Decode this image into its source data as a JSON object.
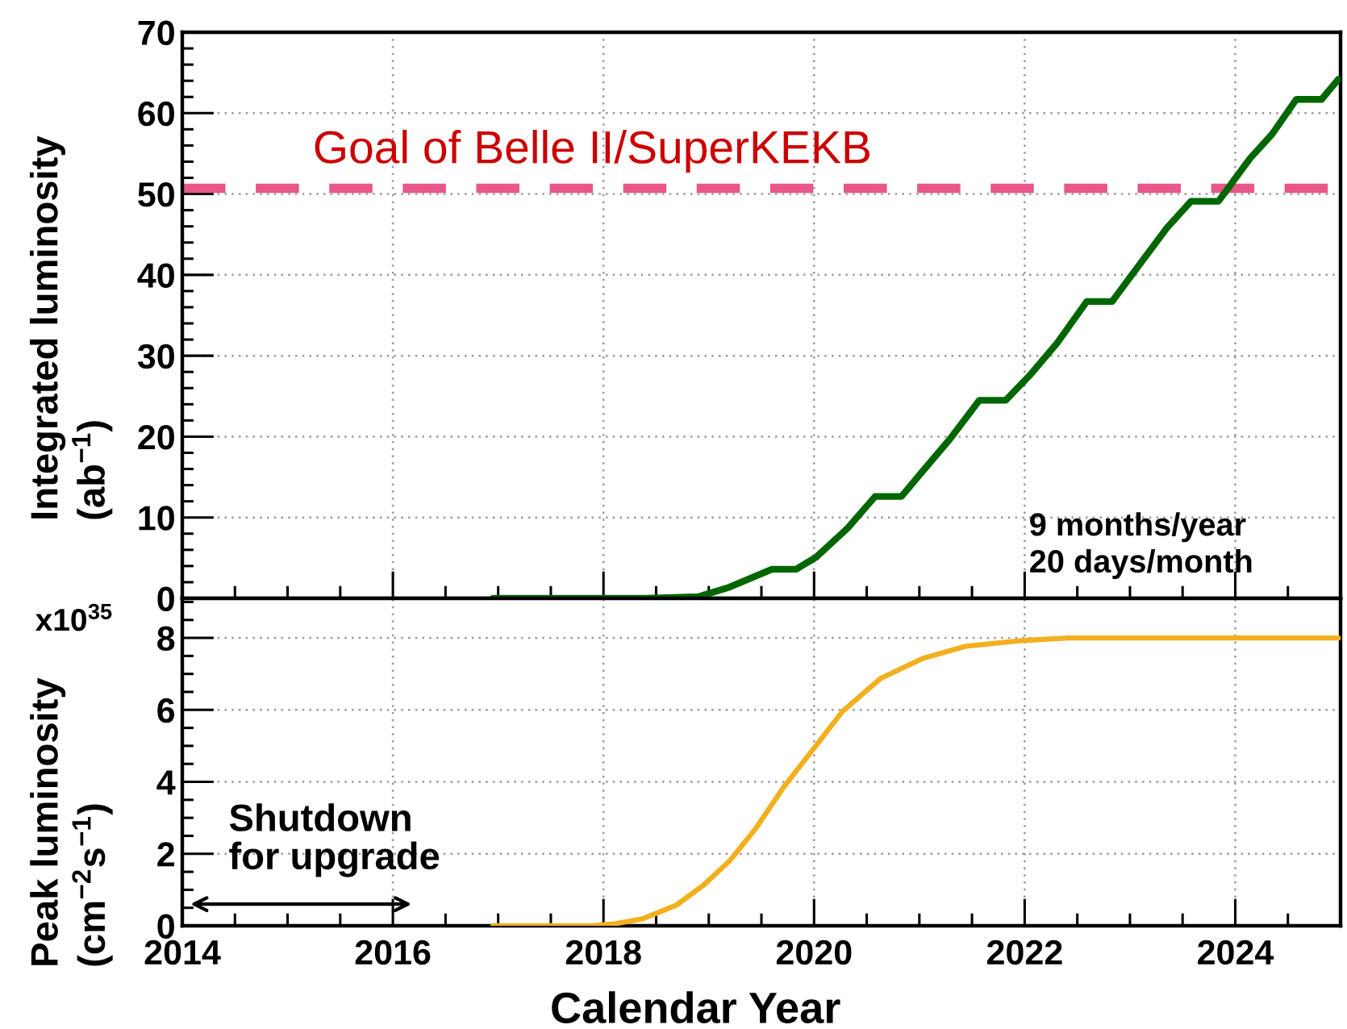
{
  "chart_data": [
    {
      "type": "line",
      "ylabel": "Integrated luminosity\n(ab$^{−1}$)",
      "x": [
        2016.95,
        2018.4,
        2018.9,
        2019.05,
        2019.2,
        2019.6,
        2019.83,
        2020.02,
        2020.32,
        2020.58,
        2020.83,
        2021.03,
        2021.29,
        2021.57,
        2021.82,
        2022.05,
        2022.31,
        2022.59,
        2022.83,
        2023.07,
        2023.35,
        2023.58,
        2023.84,
        2024.14,
        2024.35,
        2024.58,
        2024.82,
        2024.98
      ],
      "values": [
        0,
        0,
        0.2,
        0.8,
        1.4,
        3.6,
        3.6,
        5.1,
        8.7,
        12.6,
        12.6,
        15.7,
        19.7,
        24.5,
        24.5,
        27.6,
        31.6,
        36.7,
        36.7,
        40.9,
        45.8,
        49.1,
        49.1,
        54.4,
        57.4,
        61.7,
        61.7,
        64.2
      ],
      "color": "#006600",
      "xlim": [
        2014,
        2025
      ],
      "ylim": [
        0,
        70
      ],
      "xticks": [
        2014,
        {
          "value": 2014.5,
          "label": null
        },
        {
          "value": 2015,
          "label": null
        },
        {
          "value": 2015.5,
          "label": null
        },
        2016,
        {
          "value": 2016.5,
          "label": null
        },
        {
          "value": 2017,
          "label": null
        },
        {
          "value": 2017.5,
          "label": null
        },
        2018,
        {
          "value": 2018.5,
          "label": null
        },
        {
          "value": 2019,
          "label": null
        },
        {
          "value": 2019.5,
          "label": null
        },
        2020,
        {
          "value": 2020.5,
          "label": null
        },
        {
          "value": 2021,
          "label": null
        },
        {
          "value": 2021.5,
          "label": null
        },
        2022,
        {
          "value": 2022.5,
          "label": null
        },
        {
          "value": 2023,
          "label": null
        },
        {
          "value": 2023.5,
          "label": null
        },
        2024,
        {
          "value": 2024.5,
          "label": null
        }
      ],
      "yticks": [
        0,
        {
          "value": 2,
          "label": null
        },
        {
          "value": 4,
          "label": null
        },
        {
          "value": 6,
          "label": null
        },
        {
          "value": 8,
          "label": null
        },
        10,
        {
          "value": 12,
          "label": null
        },
        {
          "value": 14,
          "label": null
        },
        {
          "value": 16,
          "label": null
        },
        {
          "value": 18,
          "label": null
        },
        20,
        {
          "value": 22,
          "label": null
        },
        {
          "value": 24,
          "label": null
        },
        {
          "value": 26,
          "label": null
        },
        {
          "value": 28,
          "label": null
        },
        30,
        {
          "value": 32,
          "label": null
        },
        {
          "value": 34,
          "label": null
        },
        {
          "value": 36,
          "label": null
        },
        {
          "value": 38,
          "label": null
        },
        40,
        {
          "value": 42,
          "label": null
        },
        {
          "value": 44,
          "label": null
        },
        {
          "value": 46,
          "label": null
        },
        {
          "value": 48,
          "label": null
        },
        50,
        {
          "value": 52,
          "label": null
        },
        {
          "value": 54,
          "label": null
        },
        {
          "value": 56,
          "label": null
        },
        {
          "value": 58,
          "label": null
        },
        60,
        {
          "value": 62,
          "label": null
        },
        {
          "value": 64,
          "label": null
        },
        {
          "value": 66,
          "label": null
        },
        {
          "value": 68,
          "label": null
        },
        70
      ],
      "tick_labels": "y",
      "grid": true,
      "ref_lines": [
        {
          "axis": "y",
          "value": 50.7,
          "label": "Goal of Belle II/SuperKEKB",
          "color": "#e8578a",
          "line_style": "dashed"
        }
      ],
      "annotations": [
        "9 months/year\n20 days/month"
      ]
    },
    {
      "type": "line",
      "xlabel": "Calendar Year",
      "ylabel": "Peak luminosity\n(cm$^{−2}$s$^{−1}$)",
      "x": [
        2016.95,
        2017.9,
        2018.1,
        2018.38,
        2018.69,
        2018.95,
        2019.2,
        2019.45,
        2019.71,
        2019.99,
        2020.27,
        2020.63,
        2021.03,
        2021.44,
        2021.95,
        2022.41,
        2024.98
      ],
      "values": [
        0,
        0,
        0.05,
        0.2,
        0.57,
        1.13,
        1.81,
        2.72,
        3.85,
        4.9,
        5.96,
        6.87,
        7.43,
        7.77,
        7.92,
        8.0,
        8.0
      ],
      "color": "#f2b01e",
      "xlim": [
        2014,
        2025
      ],
      "ylim": [
        0,
        9.1
      ],
      "xticks": [
        2014,
        {
          "value": 2014.5,
          "label": null
        },
        {
          "value": 2015,
          "label": null
        },
        {
          "value": 2015.5,
          "label": null
        },
        2016,
        {
          "value": 2016.5,
          "label": null
        },
        {
          "value": 2017,
          "label": null
        },
        {
          "value": 2017.5,
          "label": null
        },
        2018,
        {
          "value": 2018.5,
          "label": null
        },
        {
          "value": 2019,
          "label": null
        },
        {
          "value": 2019.5,
          "label": null
        },
        2020,
        {
          "value": 2020.5,
          "label": null
        },
        {
          "value": 2021,
          "label": null
        },
        {
          "value": 2021.5,
          "label": null
        },
        2022,
        {
          "value": 2022.5,
          "label": null
        },
        {
          "value": 2023,
          "label": null
        },
        {
          "value": 2023.5,
          "label": null
        },
        2024,
        {
          "value": 2024.5,
          "label": null
        }
      ],
      "yticks": [
        0,
        {
          "value": 0.5,
          "label": null
        },
        {
          "value": 1,
          "label": null
        },
        {
          "value": 1.5,
          "label": null
        },
        2,
        {
          "value": 2.5,
          "label": null
        },
        {
          "value": 3,
          "label": null
        },
        {
          "value": 3.5,
          "label": null
        },
        4,
        {
          "value": 4.5,
          "label": null
        },
        {
          "value": 5,
          "label": null
        },
        {
          "value": 5.5,
          "label": null
        },
        6,
        {
          "value": 6.5,
          "label": null
        },
        {
          "value": 7,
          "label": null
        },
        {
          "value": 7.5,
          "label": null
        },
        8,
        {
          "value": 8.5,
          "label": null
        },
        {
          "value": 9,
          "label": null
        }
      ],
      "grid": true,
      "annotations": [
        "x10$^{35}$",
        "Shutdown\nfor upgrade"
      ]
    }
  ]
}
